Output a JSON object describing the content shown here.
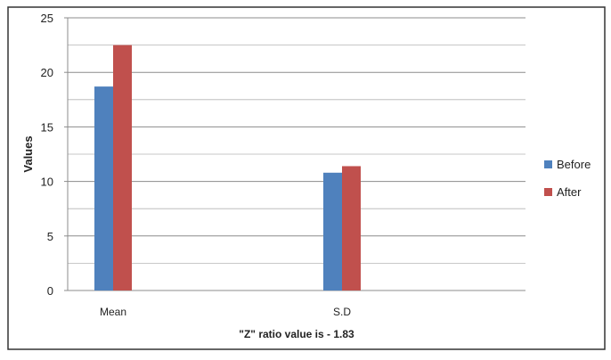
{
  "chart_data": {
    "type": "bar",
    "categories": [
      "Mean",
      "S.D"
    ],
    "series": [
      {
        "name": "Before",
        "values": [
          18.7,
          10.8
        ],
        "color": "#4F81BD"
      },
      {
        "name": "After",
        "values": [
          22.5,
          11.4
        ],
        "color": "#C0504D"
      }
    ],
    "ylabel": "Values",
    "xlabel": "\"Z\" ratio value is - 1.83",
    "ylim": [
      0,
      25
    ],
    "yticks": [
      0,
      5,
      10,
      15,
      20,
      25
    ],
    "grid": true,
    "legend_position": "right"
  }
}
